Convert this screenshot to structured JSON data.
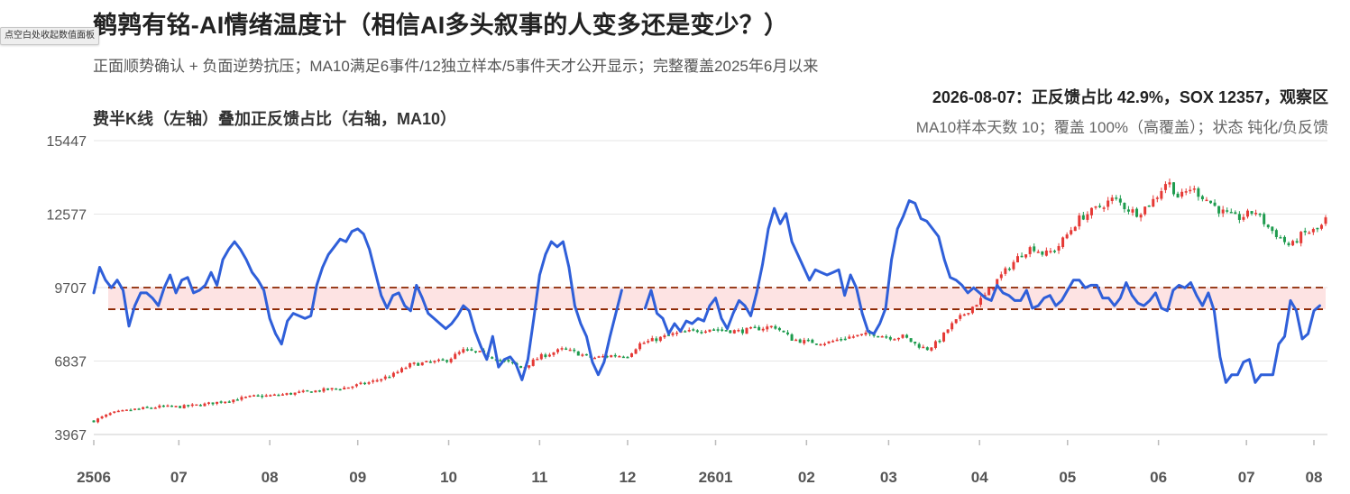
{
  "header": {
    "title": "鹌鹑有铭-AI情绪温度计（相信AI多头叙事的人变多还是变少？）",
    "subtitle": "正面顺势确认 + 负面逆势抗压；MA10满足6事件/12独立样本/5事件天才公开显示；完整覆盖2025年6月以来",
    "toggle_button": "点空白处收起数值面板"
  },
  "status": {
    "main": "2026-08-07：正反馈占比 42.9%，SOX 12357，观察区",
    "sub": "MA10样本天数 10；覆盖 100%（高覆盖）；状态 钝化/负反馈"
  },
  "colors": {
    "line": "#2f5fd9",
    "up": "#e53935",
    "down": "#1e9b4e",
    "band_fill": "#fde3e3",
    "band_line": "#8b2500",
    "grid": "#e6e6e6"
  },
  "chart_data": {
    "type": "candlestick+line",
    "title": "费半K线（左轴）叠加正反馈占比（右轴，MA10）",
    "x_ticks": [
      "2506",
      "07",
      "08",
      "09",
      "10",
      "11",
      "12",
      "2601",
      "02",
      "03",
      "04",
      "05",
      "06",
      "07",
      "08"
    ],
    "y_left": {
      "ticks": [
        15447,
        12577,
        9707,
        6837,
        3967
      ],
      "min": 3967,
      "max": 15447
    },
    "observation_band": {
      "low": 8860,
      "high": 9707
    },
    "sox_close_anchors": [
      [
        0,
        4500
      ],
      [
        6,
        4800
      ],
      [
        14,
        4950
      ],
      [
        22,
        5050
      ],
      [
        30,
        5050
      ],
      [
        38,
        5150
      ],
      [
        46,
        5300
      ],
      [
        54,
        5450
      ],
      [
        62,
        5500
      ],
      [
        70,
        5600
      ],
      [
        78,
        5700
      ],
      [
        86,
        5800
      ],
      [
        94,
        6000
      ],
      [
        102,
        6300
      ],
      [
        108,
        6700
      ],
      [
        112,
        6750
      ],
      [
        120,
        6850
      ],
      [
        126,
        7250
      ],
      [
        132,
        7150
      ],
      [
        138,
        6900
      ],
      [
        142,
        6750
      ],
      [
        146,
        6550
      ],
      [
        152,
        7000
      ],
      [
        160,
        7300
      ],
      [
        166,
        7100
      ],
      [
        170,
        6950
      ],
      [
        176,
        7050
      ],
      [
        182,
        7050
      ],
      [
        186,
        7500
      ],
      [
        192,
        7700
      ],
      [
        198,
        7900
      ],
      [
        204,
        8000
      ],
      [
        210,
        8100
      ],
      [
        214,
        8050
      ],
      [
        220,
        8000
      ],
      [
        226,
        8100
      ],
      [
        232,
        8200
      ],
      [
        238,
        7700
      ],
      [
        242,
        7600
      ],
      [
        250,
        7550
      ],
      [
        256,
        7750
      ],
      [
        262,
        7850
      ],
      [
        266,
        7900
      ],
      [
        272,
        7750
      ],
      [
        276,
        7800
      ],
      [
        280,
        7500
      ],
      [
        284,
        7300
      ],
      [
        288,
        7600
      ],
      [
        292,
        8200
      ],
      [
        296,
        8600
      ],
      [
        300,
        9000
      ],
      [
        304,
        9400
      ],
      [
        308,
        10000
      ],
      [
        312,
        10500
      ],
      [
        316,
        11000
      ],
      [
        320,
        11300
      ],
      [
        324,
        11000
      ],
      [
        328,
        11200
      ],
      [
        332,
        11800
      ],
      [
        336,
        12400
      ],
      [
        342,
        12800
      ],
      [
        348,
        13200
      ],
      [
        352,
        12800
      ],
      [
        356,
        12600
      ],
      [
        362,
        13200
      ],
      [
        366,
        13900
      ],
      [
        370,
        13200
      ],
      [
        374,
        13600
      ],
      [
        380,
        13100
      ],
      [
        384,
        12700
      ],
      [
        390,
        12400
      ],
      [
        396,
        12700
      ],
      [
        400,
        12100
      ],
      [
        404,
        11700
      ],
      [
        408,
        11300
      ],
      [
        412,
        11800
      ],
      [
        418,
        12000
      ],
      [
        420,
        12357
      ]
    ],
    "positive_feedback_ma10": [
      [
        0,
        9500
      ],
      [
        2,
        10500
      ],
      [
        4,
        10000
      ],
      [
        6,
        9700
      ],
      [
        8,
        10000
      ],
      [
        10,
        9600
      ],
      [
        12,
        8200
      ],
      [
        14,
        9000
      ],
      [
        16,
        9500
      ],
      [
        18,
        9500
      ],
      [
        20,
        9300
      ],
      [
        22,
        9000
      ],
      [
        24,
        9700
      ],
      [
        26,
        10200
      ],
      [
        28,
        9500
      ],
      [
        30,
        10000
      ],
      [
        32,
        10100
      ],
      [
        34,
        9500
      ],
      [
        36,
        9600
      ],
      [
        38,
        9800
      ],
      [
        40,
        10300
      ],
      [
        42,
        9800
      ],
      [
        44,
        10800
      ],
      [
        46,
        11200
      ],
      [
        48,
        11500
      ],
      [
        50,
        11200
      ],
      [
        52,
        10800
      ],
      [
        54,
        10300
      ],
      [
        56,
        10000
      ],
      [
        58,
        9600
      ],
      [
        60,
        8500
      ],
      [
        62,
        7900
      ],
      [
        64,
        7500
      ],
      [
        66,
        8400
      ],
      [
        68,
        8700
      ],
      [
        70,
        8600
      ],
      [
        72,
        8500
      ],
      [
        74,
        8600
      ],
      [
        76,
        9800
      ],
      [
        78,
        10500
      ],
      [
        80,
        11000
      ],
      [
        82,
        11300
      ],
      [
        84,
        11600
      ],
      [
        86,
        11500
      ],
      [
        88,
        11900
      ],
      [
        90,
        12000
      ],
      [
        92,
        11800
      ],
      [
        94,
        11200
      ],
      [
        96,
        10300
      ],
      [
        98,
        9400
      ],
      [
        100,
        8900
      ],
      [
        102,
        9400
      ],
      [
        104,
        9500
      ],
      [
        106,
        9000
      ],
      [
        108,
        8800
      ],
      [
        110,
        9800
      ],
      [
        112,
        9300
      ],
      [
        114,
        8700
      ],
      [
        116,
        8500
      ],
      [
        118,
        8300
      ],
      [
        120,
        8100
      ],
      [
        122,
        8300
      ],
      [
        124,
        8600
      ],
      [
        126,
        9000
      ],
      [
        128,
        8800
      ],
      [
        130,
        8000
      ],
      [
        132,
        7400
      ],
      [
        134,
        6900
      ],
      [
        136,
        7800
      ],
      [
        138,
        6600
      ],
      [
        140,
        6900
      ],
      [
        142,
        7000
      ],
      [
        144,
        6700
      ],
      [
        146,
        6100
      ],
      [
        148,
        6900
      ],
      [
        150,
        8500
      ],
      [
        152,
        10200
      ],
      [
        154,
        11000
      ],
      [
        156,
        11500
      ],
      [
        158,
        11300
      ],
      [
        160,
        11500
      ],
      [
        162,
        10500
      ],
      [
        164,
        9000
      ],
      [
        166,
        8300
      ],
      [
        168,
        7800
      ],
      [
        170,
        6800
      ],
      [
        172,
        6300
      ],
      [
        174,
        6800
      ],
      [
        176,
        7800
      ],
      [
        178,
        8700
      ],
      [
        180,
        9600
      ],
      [
        188,
        8900
      ],
      [
        190,
        9600
      ],
      [
        192,
        8700
      ],
      [
        194,
        8500
      ],
      [
        196,
        7900
      ],
      [
        198,
        8300
      ],
      [
        200,
        8000
      ],
      [
        202,
        8400
      ],
      [
        204,
        8300
      ],
      [
        206,
        8500
      ],
      [
        208,
        8400
      ],
      [
        210,
        9000
      ],
      [
        212,
        9300
      ],
      [
        214,
        8500
      ],
      [
        216,
        8100
      ],
      [
        218,
        8700
      ],
      [
        220,
        9200
      ],
      [
        222,
        9000
      ],
      [
        224,
        8600
      ],
      [
        226,
        9500
      ],
      [
        228,
        10600
      ],
      [
        230,
        12000
      ],
      [
        232,
        12800
      ],
      [
        234,
        12200
      ],
      [
        236,
        12600
      ],
      [
        238,
        11500
      ],
      [
        240,
        11000
      ],
      [
        242,
        10500
      ],
      [
        244,
        10000
      ],
      [
        246,
        10400
      ],
      [
        248,
        10300
      ],
      [
        250,
        10200
      ],
      [
        252,
        10300
      ],
      [
        254,
        10400
      ],
      [
        256,
        9400
      ],
      [
        258,
        10200
      ],
      [
        260,
        9700
      ],
      [
        262,
        8700
      ],
      [
        264,
        8000
      ],
      [
        266,
        7900
      ],
      [
        268,
        8300
      ],
      [
        270,
        8900
      ],
      [
        272,
        10800
      ],
      [
        274,
        12000
      ],
      [
        276,
        12500
      ],
      [
        278,
        13100
      ],
      [
        280,
        13000
      ],
      [
        282,
        12400
      ],
      [
        284,
        12300
      ],
      [
        286,
        12000
      ],
      [
        288,
        11700
      ],
      [
        290,
        10800
      ],
      [
        292,
        10100
      ],
      [
        294,
        10000
      ],
      [
        296,
        9800
      ],
      [
        298,
        9500
      ],
      [
        300,
        9700
      ],
      [
        302,
        9500
      ],
      [
        304,
        9300
      ],
      [
        306,
        9200
      ],
      [
        308,
        9800
      ],
      [
        310,
        9500
      ],
      [
        312,
        9400
      ],
      [
        314,
        9200
      ],
      [
        316,
        9200
      ],
      [
        318,
        9600
      ],
      [
        320,
        8900
      ],
      [
        322,
        9000
      ],
      [
        324,
        9300
      ],
      [
        326,
        9400
      ],
      [
        328,
        9000
      ],
      [
        330,
        9200
      ],
      [
        332,
        9600
      ],
      [
        334,
        10000
      ],
      [
        336,
        10000
      ],
      [
        338,
        9700
      ],
      [
        340,
        9800
      ],
      [
        342,
        9800
      ],
      [
        344,
        9300
      ],
      [
        346,
        9300
      ],
      [
        348,
        9000
      ],
      [
        350,
        9300
      ],
      [
        352,
        9900
      ],
      [
        354,
        9400
      ],
      [
        356,
        9100
      ],
      [
        358,
        9000
      ],
      [
        360,
        9200
      ],
      [
        362,
        9500
      ],
      [
        364,
        8900
      ],
      [
        366,
        8800
      ],
      [
        368,
        9600
      ],
      [
        370,
        9800
      ],
      [
        372,
        9700
      ],
      [
        374,
        9900
      ],
      [
        376,
        9400
      ],
      [
        378,
        9000
      ],
      [
        380,
        9500
      ],
      [
        382,
        8800
      ],
      [
        384,
        7000
      ],
      [
        386,
        6000
      ],
      [
        388,
        6300
      ],
      [
        390,
        6300
      ],
      [
        392,
        6800
      ],
      [
        394,
        6900
      ],
      [
        396,
        6000
      ],
      [
        398,
        6300
      ],
      [
        402,
        6300
      ],
      [
        404,
        7500
      ],
      [
        406,
        7800
      ],
      [
        408,
        9200
      ],
      [
        410,
        8800
      ],
      [
        412,
        7700
      ],
      [
        414,
        7900
      ],
      [
        416,
        8800
      ],
      [
        418,
        9000
      ]
    ]
  }
}
